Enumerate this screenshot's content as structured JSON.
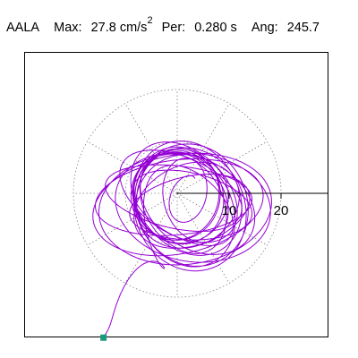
{
  "header": {
    "station": "AALA",
    "max_label": "Max:",
    "max_value": "27.8 cm/s",
    "max_exp": "2",
    "per_label": "Per:",
    "per_value": "0.280 s",
    "ang_label": "Ang:",
    "ang_value": "245.7"
  },
  "chart_data": {
    "type": "scatter",
    "subtype": "particle-motion-polar",
    "title": "",
    "xlabel": "",
    "ylabel": "",
    "rings": [
      10,
      20
    ],
    "ring_labels": [
      "10",
      "20"
    ],
    "radial_spokes_deg": [
      0,
      30,
      60,
      90,
      120,
      150,
      180,
      210,
      240,
      270,
      300,
      330
    ],
    "max_amplitude": 27.8,
    "period_s": 0.28,
    "angle_deg": 245.7,
    "axis_direction_deg": 0,
    "end_marker": {
      "x": -14.2,
      "y": -27.8
    },
    "colors": {
      "trace": "#9400d3",
      "grid": "#808080",
      "end_marker": "#1a9a7a",
      "frame": "#000000"
    }
  }
}
